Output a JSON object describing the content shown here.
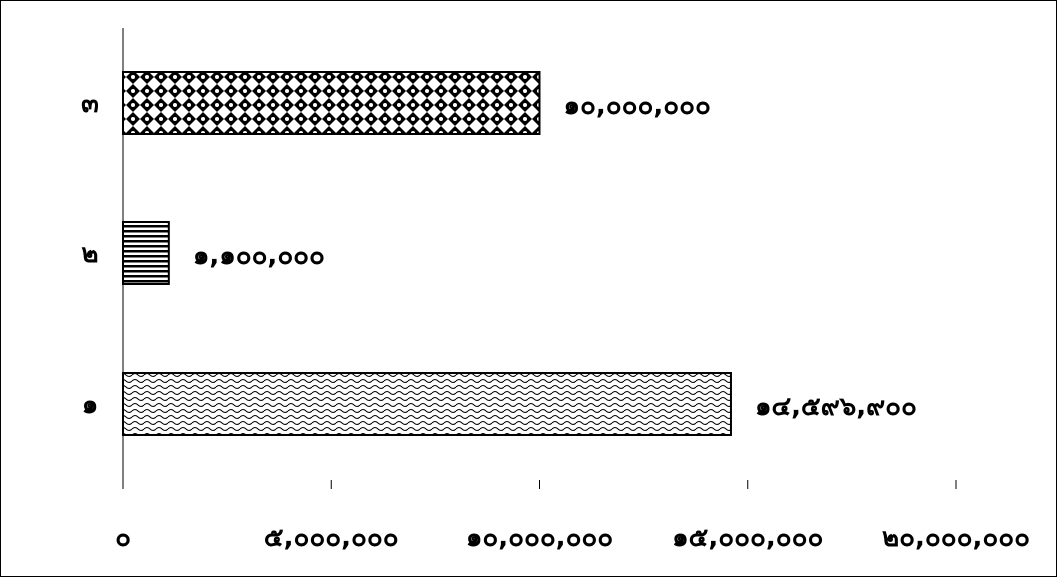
{
  "chart_data": {
    "type": "bar",
    "orientation": "horizontal",
    "categories": [
      "๑",
      "๒",
      "๓"
    ],
    "values": [
      14596900,
      1100000,
      10000000
    ],
    "value_labels": [
      "๑๔,๕๙๖,๙๐๐",
      "๑,๑๐๐,๐๐๐",
      "๑๐,๐๐๐,๐๐๐"
    ],
    "patterns": [
      "wave",
      "horizontal-lines",
      "diamond-checker"
    ],
    "x_ticks": [
      0,
      5000000,
      10000000,
      15000000,
      20000000
    ],
    "x_tick_labels": [
      "๐",
      "๕,๐๐๐,๐๐๐",
      "๑๐,๐๐๐,๐๐๐",
      "๑๕,๐๐๐,๐๐๐",
      "๒๐,๐๐๐,๐๐๐"
    ],
    "xlim": [
      0,
      20000000
    ],
    "title": "",
    "xlabel": "",
    "ylabel": "",
    "grid": false,
    "legend": "none",
    "colors": {
      "bar_fill": "#ffffff",
      "bar_stroke": "#000000",
      "axis": "#000000"
    }
  }
}
